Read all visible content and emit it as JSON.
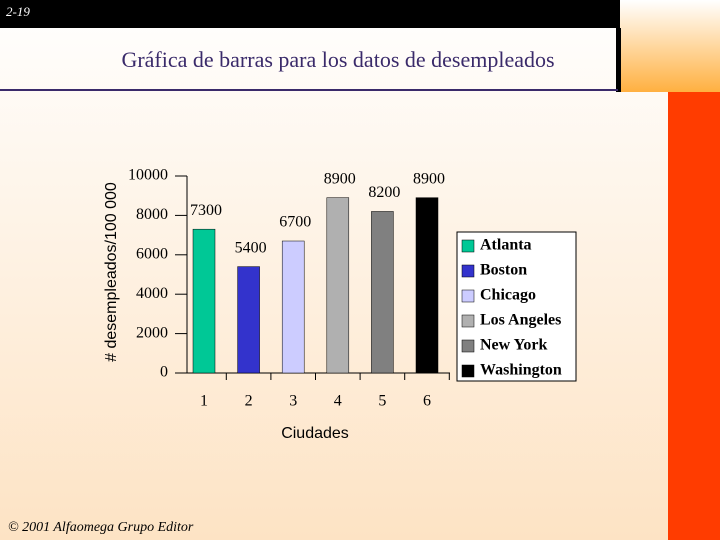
{
  "slide_number": "2-19",
  "footer": "© 2001 Alfaomega Grupo Editor",
  "chart_data": {
    "type": "bar",
    "title": "Gráfica de barras para los datos de desempleados",
    "y_label": "# desempleados/100 000",
    "x_label": "Ciudades",
    "categories": [
      "1",
      "2",
      "3",
      "4",
      "5",
      "6"
    ],
    "values": [
      7300,
      5400,
      6700,
      8900,
      8200,
      8900
    ],
    "legend": [
      "Atlanta",
      "Boston",
      "Chicago",
      "Los Angeles",
      "New York",
      "Washington"
    ],
    "colors": [
      "#00c896",
      "#3333cc",
      "#ccccff",
      "#b0b0b0",
      "#808080",
      "#000000"
    ],
    "ylim": [
      0,
      10000
    ],
    "yticks": [
      0,
      2000,
      4000,
      6000,
      8000,
      10000
    ],
    "legend_position": "right"
  }
}
